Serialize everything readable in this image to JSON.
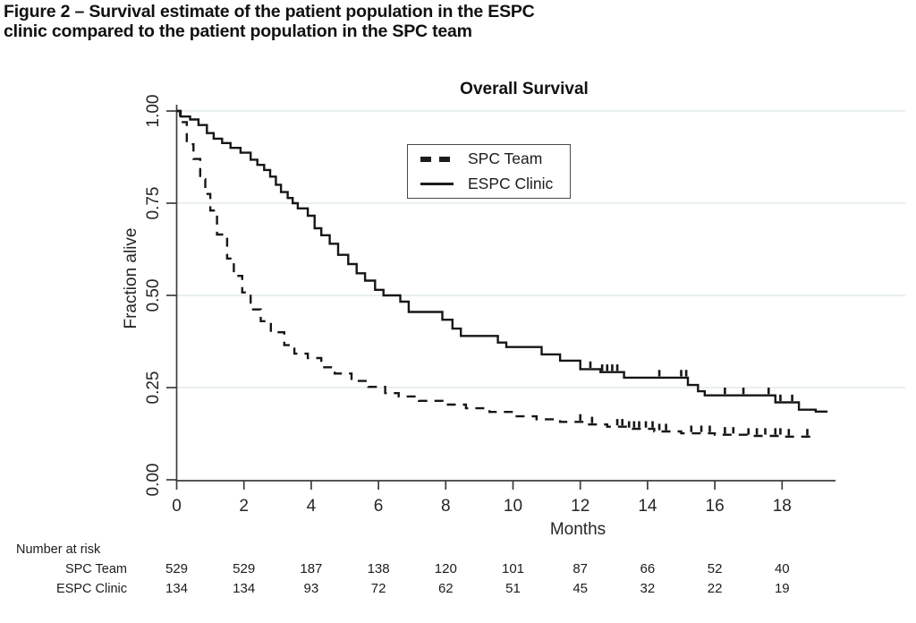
{
  "figure_title": {
    "line1": "Figure 2 – Survival estimate of the patient population in the ESPC",
    "line2": "clinic compared to the patient population in the SPC team"
  },
  "chart_data": {
    "type": "line",
    "variant": "kaplan_meier_step",
    "title": "Overall Survival",
    "xlabel": "Months",
    "ylabel": "Fraction alive",
    "xlim": [
      0,
      19.5
    ],
    "ylim": [
      0.0,
      1.0
    ],
    "xticks": [
      0,
      2,
      4,
      6,
      8,
      10,
      12,
      14,
      16,
      18
    ],
    "yticks": [
      {
        "value": 0.0,
        "label": "0.00"
      },
      {
        "value": 0.25,
        "label": "0.25"
      },
      {
        "value": 0.5,
        "label": "0.50"
      },
      {
        "value": 0.75,
        "label": "0.75"
      },
      {
        "value": 1.0,
        "label": "1.00"
      }
    ],
    "grid": {
      "horizontal": true,
      "color": "#e6eeed"
    },
    "legend": {
      "position": "top-center-inside",
      "entries": [
        {
          "label": "SPC Team",
          "style": "dashed"
        },
        {
          "label": "ESPC Clinic",
          "style": "solid"
        }
      ]
    },
    "series": [
      {
        "name": "SPC Team",
        "style": "dashed",
        "points": [
          [
            0,
            1.0
          ],
          [
            0.1,
            0.97
          ],
          [
            0.3,
            0.91
          ],
          [
            0.5,
            0.87
          ],
          [
            0.7,
            0.815
          ],
          [
            0.85,
            0.775
          ],
          [
            1.0,
            0.73
          ],
          [
            1.2,
            0.665
          ],
          [
            1.5,
            0.6
          ],
          [
            1.7,
            0.553
          ],
          [
            1.95,
            0.508
          ],
          [
            2.2,
            0.462
          ],
          [
            2.5,
            0.43
          ],
          [
            2.8,
            0.4
          ],
          [
            3.2,
            0.365
          ],
          [
            3.5,
            0.342
          ],
          [
            3.9,
            0.33
          ],
          [
            4.3,
            0.305
          ],
          [
            4.7,
            0.288
          ],
          [
            5.2,
            0.268
          ],
          [
            5.7,
            0.252
          ],
          [
            6.2,
            0.235
          ],
          [
            6.6,
            0.226
          ],
          [
            7.2,
            0.214
          ],
          [
            7.9,
            0.204
          ],
          [
            8.6,
            0.194
          ],
          [
            9.3,
            0.184
          ],
          [
            10.0,
            0.172
          ],
          [
            10.7,
            0.164
          ],
          [
            11.4,
            0.157
          ],
          [
            12.1,
            0.15
          ],
          [
            12.8,
            0.144
          ],
          [
            13.4,
            0.138
          ],
          [
            14.2,
            0.131
          ],
          [
            15.0,
            0.126
          ],
          [
            16.0,
            0.122
          ],
          [
            17.0,
            0.119
          ],
          [
            18.0,
            0.117
          ],
          [
            18.9,
            0.115
          ]
        ],
        "censor_marks": [
          12.0,
          12.35,
          13.1,
          13.25,
          13.45,
          13.6,
          13.75,
          13.95,
          14.15,
          14.35,
          14.55,
          15.3,
          15.6,
          15.85,
          16.3,
          16.55,
          17.0,
          17.25,
          17.5,
          17.8,
          17.95,
          18.2,
          18.75
        ]
      },
      {
        "name": "ESPC Clinic",
        "style": "solid",
        "points": [
          [
            0,
            1.0
          ],
          [
            0.12,
            0.985
          ],
          [
            0.4,
            0.977
          ],
          [
            0.65,
            0.962
          ],
          [
            0.9,
            0.94
          ],
          [
            1.1,
            0.925
          ],
          [
            1.35,
            0.913
          ],
          [
            1.6,
            0.9
          ],
          [
            1.9,
            0.887
          ],
          [
            2.2,
            0.868
          ],
          [
            2.4,
            0.854
          ],
          [
            2.6,
            0.84
          ],
          [
            2.78,
            0.822
          ],
          [
            2.95,
            0.8
          ],
          [
            3.1,
            0.78
          ],
          [
            3.3,
            0.764
          ],
          [
            3.45,
            0.75
          ],
          [
            3.6,
            0.736
          ],
          [
            3.9,
            0.716
          ],
          [
            4.1,
            0.682
          ],
          [
            4.3,
            0.663
          ],
          [
            4.55,
            0.64
          ],
          [
            4.8,
            0.61
          ],
          [
            5.1,
            0.585
          ],
          [
            5.35,
            0.56
          ],
          [
            5.6,
            0.54
          ],
          [
            5.9,
            0.515
          ],
          [
            6.15,
            0.5
          ],
          [
            6.65,
            0.483
          ],
          [
            6.9,
            0.455
          ],
          [
            7.9,
            0.434
          ],
          [
            8.2,
            0.41
          ],
          [
            8.45,
            0.39
          ],
          [
            9.55,
            0.372
          ],
          [
            9.8,
            0.36
          ],
          [
            10.85,
            0.34
          ],
          [
            11.4,
            0.323
          ],
          [
            12.0,
            0.3
          ],
          [
            12.6,
            0.292
          ],
          [
            13.3,
            0.277
          ],
          [
            15.2,
            0.257
          ],
          [
            15.5,
            0.24
          ],
          [
            15.7,
            0.229
          ],
          [
            17.8,
            0.21
          ],
          [
            18.5,
            0.19
          ],
          [
            19.0,
            0.185
          ],
          [
            19.35,
            0.185
          ]
        ],
        "censor_marks": [
          12.3,
          12.65,
          12.8,
          12.95,
          13.1,
          14.35,
          15.0,
          15.15,
          16.3,
          16.85,
          17.6,
          17.95,
          18.3
        ]
      }
    ],
    "number_at_risk": {
      "header": "Number at risk",
      "months": [
        0,
        2,
        4,
        6,
        8,
        10,
        12,
        14,
        16,
        18
      ],
      "rows": [
        {
          "label": "SPC Team",
          "values": [
            529,
            529,
            187,
            138,
            120,
            101,
            87,
            66,
            52,
            40
          ]
        },
        {
          "label": "ESPC Clinic",
          "values": [
            134,
            134,
            93,
            72,
            62,
            51,
            45,
            32,
            22,
            19
          ]
        }
      ]
    },
    "colors": {
      "line": "#161616",
      "axis": "#3d3d3d",
      "text": "#262626",
      "grid": "#e6eeed"
    }
  }
}
